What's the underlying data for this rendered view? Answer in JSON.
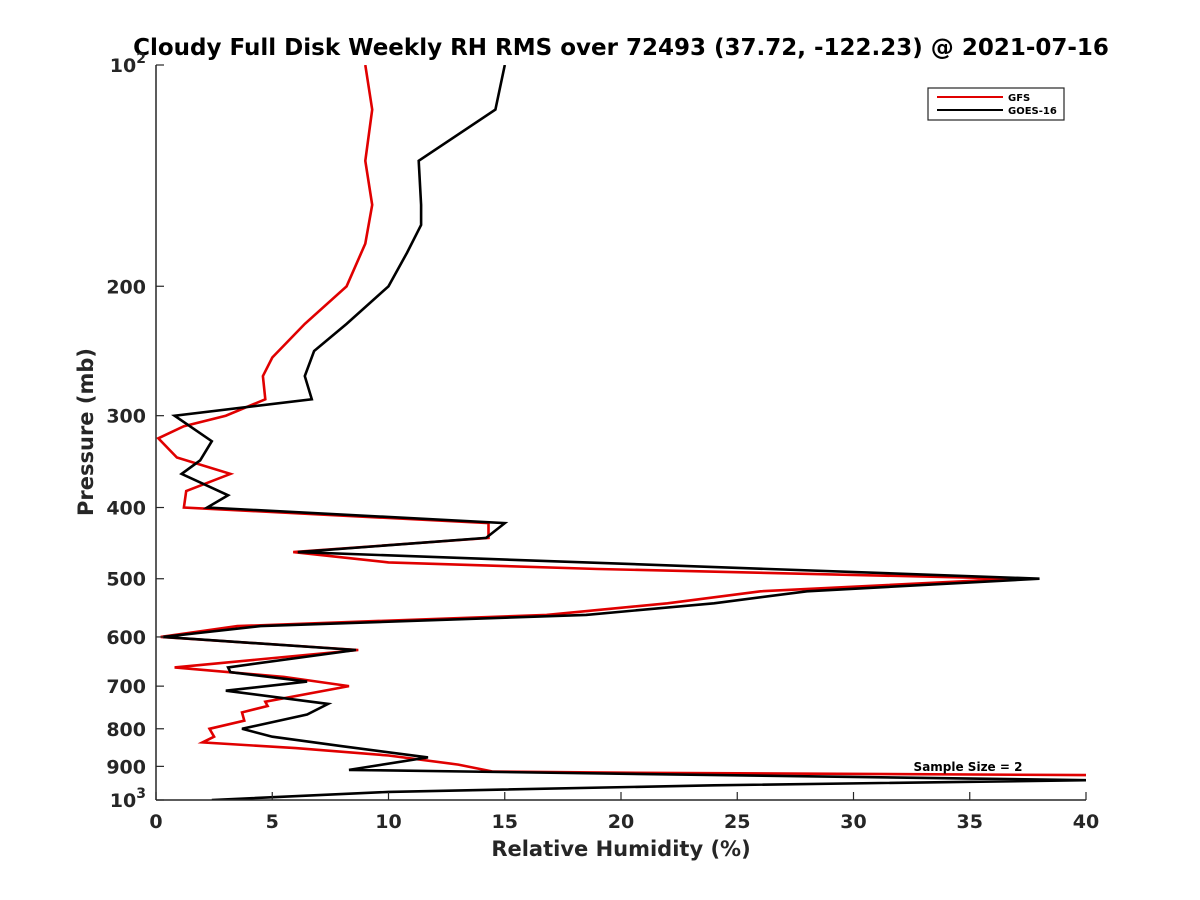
{
  "chart_data": {
    "type": "line",
    "title": "Cloudy Full Disk Weekly RH RMS over 72493 (37.72, -122.23) @ 2021-07-16",
    "xlabel": "Relative Humidity (%)",
    "ylabel": "Pressure (mb)",
    "xlim": [
      0,
      40
    ],
    "ylim": [
      100,
      1000
    ],
    "y_scale": "log",
    "y_reversed": true,
    "grid": false,
    "legend_position": "top-right",
    "x_ticks": [
      0,
      5,
      10,
      15,
      20,
      25,
      30,
      35,
      40
    ],
    "y_ticks": [
      {
        "value": 100,
        "label": "10",
        "sup": "2"
      },
      {
        "value": 200,
        "label": "200",
        "sup": ""
      },
      {
        "value": 300,
        "label": "300",
        "sup": ""
      },
      {
        "value": 400,
        "label": "400",
        "sup": ""
      },
      {
        "value": 500,
        "label": "500",
        "sup": ""
      },
      {
        "value": 600,
        "label": "600",
        "sup": ""
      },
      {
        "value": 700,
        "label": "700",
        "sup": ""
      },
      {
        "value": 800,
        "label": "800",
        "sup": ""
      },
      {
        "value": 900,
        "label": "900",
        "sup": ""
      },
      {
        "value": 1000,
        "label": "10",
        "sup": "3"
      }
    ],
    "annotation": "Sample Size = 2",
    "series": [
      {
        "name": "GFS",
        "color": "#e00000",
        "points": [
          [
            9.0,
            100
          ],
          [
            9.3,
            115
          ],
          [
            9.0,
            135
          ],
          [
            9.3,
            155
          ],
          [
            9.0,
            175
          ],
          [
            8.2,
            200
          ],
          [
            6.4,
            225
          ],
          [
            5.0,
            250
          ],
          [
            4.6,
            265
          ],
          [
            4.7,
            285
          ],
          [
            3.0,
            300
          ],
          [
            1.2,
            310
          ],
          [
            0.1,
            322
          ],
          [
            0.9,
            342
          ],
          [
            3.2,
            360
          ],
          [
            1.3,
            380
          ],
          [
            1.2,
            400
          ],
          [
            14.3,
            420
          ],
          [
            14.3,
            440
          ],
          [
            5.9,
            460
          ],
          [
            10.0,
            475
          ],
          [
            19.0,
            485
          ],
          [
            37.0,
            500
          ],
          [
            26.0,
            520
          ],
          [
            22.0,
            540
          ],
          [
            16.8,
            560
          ],
          [
            3.5,
            580
          ],
          [
            0.2,
            600
          ],
          [
            8.7,
            625
          ],
          [
            0.8,
            660
          ],
          [
            5.5,
            680
          ],
          [
            8.3,
            700
          ],
          [
            4.7,
            735
          ],
          [
            4.8,
            745
          ],
          [
            3.7,
            760
          ],
          [
            3.8,
            780
          ],
          [
            2.3,
            800
          ],
          [
            2.5,
            820
          ],
          [
            2.0,
            835
          ],
          [
            6.0,
            850
          ],
          [
            10.0,
            870
          ],
          [
            13.0,
            895
          ],
          [
            14.5,
            915
          ],
          [
            20.0,
            918
          ],
          [
            40.0,
            925
          ]
        ]
      },
      {
        "name": "GOES-16",
        "color": "#000000",
        "points": [
          [
            15.0,
            100
          ],
          [
            14.6,
            115
          ],
          [
            11.3,
            135
          ],
          [
            11.4,
            155
          ],
          [
            11.4,
            165
          ],
          [
            10.8,
            180
          ],
          [
            10.0,
            200
          ],
          [
            8.2,
            225
          ],
          [
            6.8,
            245
          ],
          [
            6.4,
            265
          ],
          [
            6.7,
            285
          ],
          [
            0.8,
            300
          ],
          [
            2.4,
            325
          ],
          [
            1.9,
            345
          ],
          [
            1.1,
            360
          ],
          [
            3.1,
            385
          ],
          [
            2.2,
            400
          ],
          [
            15.0,
            420
          ],
          [
            14.2,
            440
          ],
          [
            6.1,
            460
          ],
          [
            38.0,
            500
          ],
          [
            28.0,
            520
          ],
          [
            24.0,
            540
          ],
          [
            18.5,
            560
          ],
          [
            4.5,
            580
          ],
          [
            0.3,
            600
          ],
          [
            8.6,
            625
          ],
          [
            3.1,
            660
          ],
          [
            3.2,
            670
          ],
          [
            6.5,
            690
          ],
          [
            3.0,
            710
          ],
          [
            7.4,
            740
          ],
          [
            6.5,
            765
          ],
          [
            3.7,
            800
          ],
          [
            5.0,
            820
          ],
          [
            8.0,
            845
          ],
          [
            11.7,
            875
          ],
          [
            8.3,
            910
          ],
          [
            40.0,
            940
          ],
          [
            24.0,
            955
          ],
          [
            10.0,
            975
          ],
          [
            2.4,
            1000
          ]
        ]
      }
    ]
  }
}
